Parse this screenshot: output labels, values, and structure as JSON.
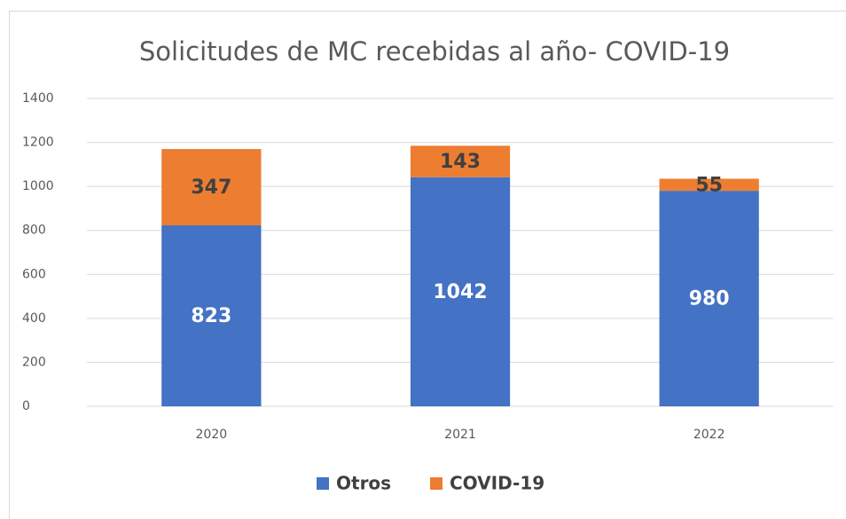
{
  "chart_data": {
    "type": "bar",
    "stacked": true,
    "title": "Solicitudes de MC recebidas al año- COVID-19",
    "categories": [
      "2020",
      "2021",
      "2022"
    ],
    "series": [
      {
        "name": "Otros",
        "color": "#4472c4",
        "values": [
          823,
          1042,
          980
        ]
      },
      {
        "name": "COVID-19",
        "color": "#ed7d31",
        "values": [
          347,
          143,
          55
        ]
      }
    ],
    "ylim": [
      0,
      1400
    ],
    "yticks": [
      0,
      200,
      400,
      600,
      800,
      1000,
      1200,
      1400
    ],
    "grid": true,
    "legend": "bottom"
  }
}
